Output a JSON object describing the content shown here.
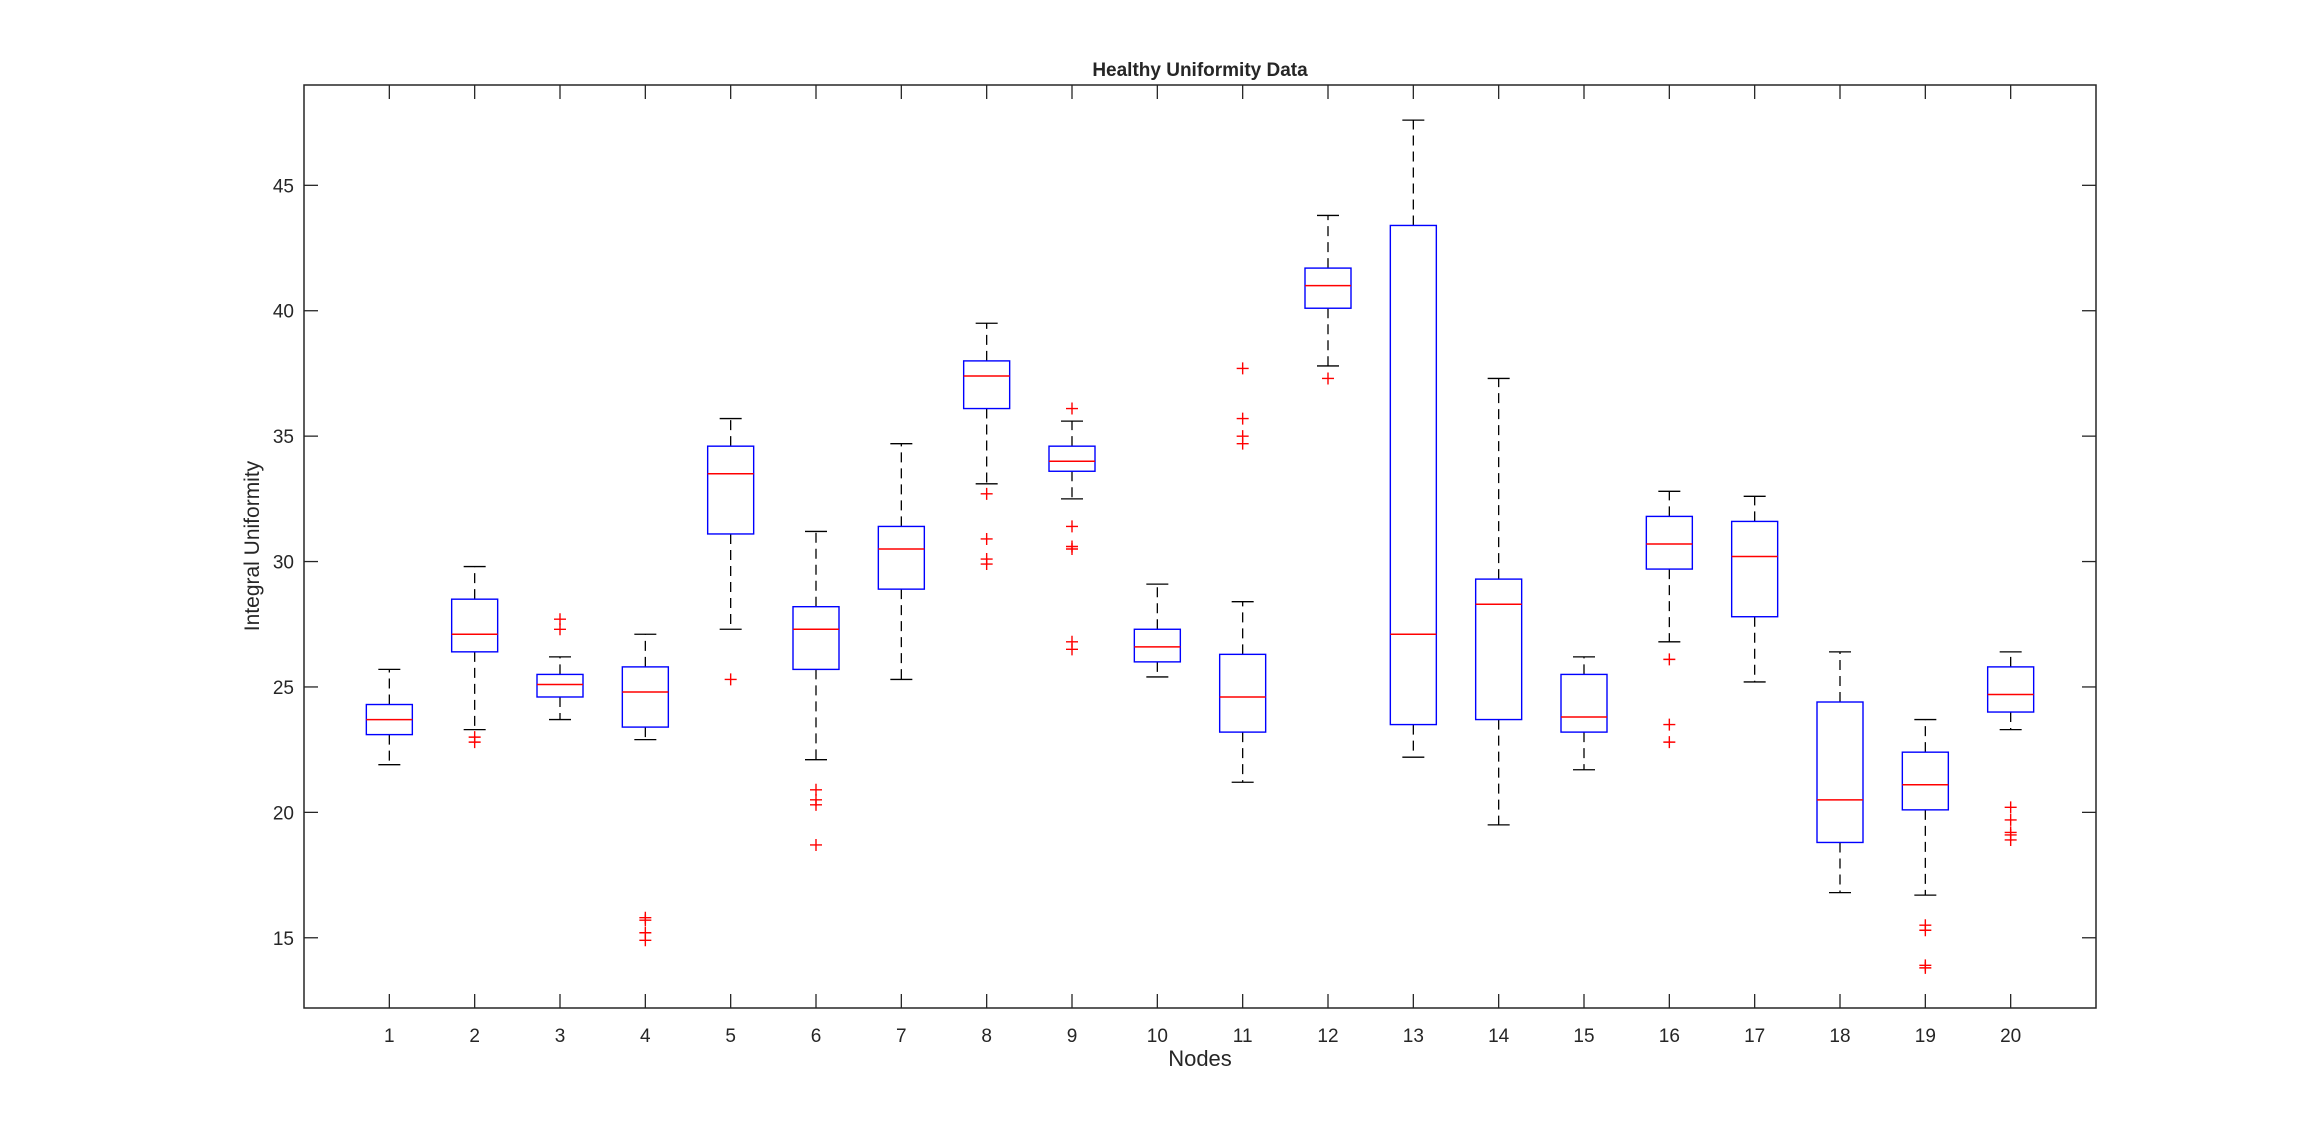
{
  "chart_data": {
    "type": "boxplot",
    "title": "Healthy Uniformity Data",
    "xlabel": "Nodes",
    "ylabel": "Integral Uniformity",
    "ylim": [
      12.2,
      49.0
    ],
    "yticks": [
      15,
      20,
      25,
      30,
      35,
      40,
      45
    ],
    "grid": false,
    "colors": {
      "box": "#0000ff",
      "median": "#ff0000",
      "whisker": "#000000",
      "outlier": "#ff0000",
      "axis": "#262626"
    },
    "categories": [
      "1",
      "2",
      "3",
      "4",
      "5",
      "6",
      "7",
      "8",
      "9",
      "10",
      "11",
      "12",
      "13",
      "14",
      "15",
      "16",
      "17",
      "18",
      "19",
      "20"
    ],
    "boxes": [
      {
        "node": "1",
        "whisker_low": 21.9,
        "q1": 23.1,
        "median": 23.7,
        "q3": 24.3,
        "whisker_high": 25.7,
        "outliers": []
      },
      {
        "node": "2",
        "whisker_low": 23.3,
        "q1": 26.4,
        "median": 27.1,
        "q3": 28.5,
        "whisker_high": 29.8,
        "outliers": [
          22.8,
          23.0
        ]
      },
      {
        "node": "3",
        "whisker_low": 23.7,
        "q1": 24.6,
        "median": 25.1,
        "q3": 25.5,
        "whisker_high": 26.2,
        "outliers": [
          27.3,
          27.7
        ]
      },
      {
        "node": "4",
        "whisker_low": 22.9,
        "q1": 23.4,
        "median": 24.8,
        "q3": 25.8,
        "whisker_high": 27.1,
        "outliers": [
          14.9,
          15.2,
          15.7,
          15.8
        ]
      },
      {
        "node": "5",
        "whisker_low": 27.3,
        "q1": 31.1,
        "median": 33.5,
        "q3": 34.6,
        "whisker_high": 35.7,
        "outliers": [
          25.3
        ]
      },
      {
        "node": "6",
        "whisker_low": 22.1,
        "q1": 25.7,
        "median": 27.3,
        "q3": 28.2,
        "whisker_high": 31.2,
        "outliers": [
          18.7,
          20.3,
          20.5,
          20.9
        ]
      },
      {
        "node": "7",
        "whisker_low": 25.3,
        "q1": 28.9,
        "median": 30.5,
        "q3": 31.4,
        "whisker_high": 34.7,
        "outliers": []
      },
      {
        "node": "8",
        "whisker_low": 33.1,
        "q1": 36.1,
        "median": 37.4,
        "q3": 38.0,
        "whisker_high": 39.5,
        "outliers": [
          29.9,
          30.1,
          30.9,
          32.7
        ]
      },
      {
        "node": "9",
        "whisker_low": 32.5,
        "q1": 33.6,
        "median": 34.0,
        "q3": 34.6,
        "whisker_high": 35.6,
        "outliers": [
          26.5,
          26.8,
          30.5,
          30.6,
          31.4,
          36.1
        ]
      },
      {
        "node": "10",
        "whisker_low": 25.4,
        "q1": 26.0,
        "median": 26.6,
        "q3": 27.3,
        "whisker_high": 29.1,
        "outliers": []
      },
      {
        "node": "11",
        "whisker_low": 21.2,
        "q1": 23.2,
        "median": 24.6,
        "q3": 26.3,
        "whisker_high": 28.4,
        "outliers": [
          34.7,
          35.0,
          35.7,
          37.7
        ]
      },
      {
        "node": "12",
        "whisker_low": 37.8,
        "q1": 40.1,
        "median": 41.0,
        "q3": 41.7,
        "whisker_high": 43.8,
        "outliers": [
          37.3
        ]
      },
      {
        "node": "13",
        "whisker_low": 22.2,
        "q1": 23.5,
        "median": 27.1,
        "q3": 43.4,
        "whisker_high": 47.6,
        "outliers": []
      },
      {
        "node": "14",
        "whisker_low": 19.5,
        "q1": 23.7,
        "median": 28.3,
        "q3": 29.3,
        "whisker_high": 37.3,
        "outliers": []
      },
      {
        "node": "15",
        "whisker_low": 21.7,
        "q1": 23.2,
        "median": 23.8,
        "q3": 25.5,
        "whisker_high": 26.2,
        "outliers": []
      },
      {
        "node": "16",
        "whisker_low": 26.8,
        "q1": 29.7,
        "median": 30.7,
        "q3": 31.8,
        "whisker_high": 32.8,
        "outliers": [
          22.8,
          23.5,
          26.1
        ]
      },
      {
        "node": "17",
        "whisker_low": 25.2,
        "q1": 27.8,
        "median": 30.2,
        "q3": 31.6,
        "whisker_high": 32.6,
        "outliers": []
      },
      {
        "node": "18",
        "whisker_low": 16.8,
        "q1": 18.8,
        "median": 20.5,
        "q3": 24.4,
        "whisker_high": 26.4,
        "outliers": []
      },
      {
        "node": "19",
        "whisker_low": 16.7,
        "q1": 20.1,
        "median": 21.1,
        "q3": 22.4,
        "whisker_high": 23.7,
        "outliers": [
          13.8,
          13.9,
          15.3,
          15.5
        ]
      },
      {
        "node": "20",
        "whisker_low": 23.3,
        "q1": 24.0,
        "median": 24.7,
        "q3": 25.8,
        "whisker_high": 26.4,
        "outliers": [
          18.9,
          19.1,
          19.2,
          19.7,
          20.2
        ]
      }
    ]
  }
}
